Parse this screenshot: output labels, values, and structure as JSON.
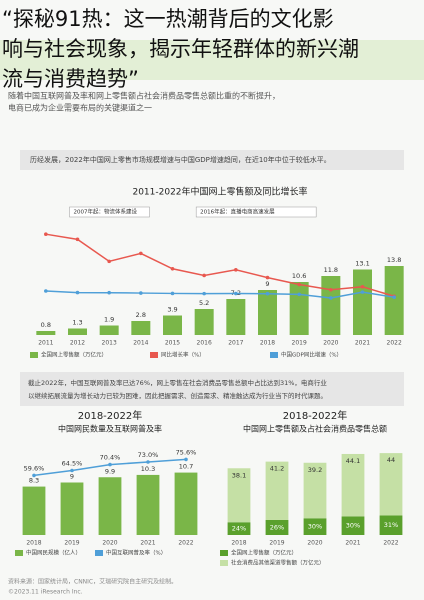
{
  "headline": [
    "“探秘91热：这一热潮背后的文化影",
    "响与社会现象，揭示年轻群体的新兴潮",
    "流与消费趋势”"
  ],
  "report": {
    "paragraph": [
      "随着中国互联网普及率和网上零售额占社会消费品零售总额比重的不断提升，",
      "电商已成为企业需要布局的关键渠道之一"
    ],
    "box1": "历经发展，2022年中国网上零售市场规模增速与中国GDP增速趋同，在近10年中位于较低水平。",
    "box2": [
      "截止2022年，中国互联网普及率已达76%，网上零售在社会消费品零售总额中占比达到31%，电商行业",
      "以继续拓展流量为增长动力已较为困难，因此把握需求、创造需求、精准触达成为行业当下的时代课题。"
    ],
    "source": "资料来源：国家统计局，CNNIC，艾瑞研究院自主研究及绘制。",
    "copyright": "©2023.11 iResearch Inc."
  },
  "chart_data": [
    {
      "type": "bar-line",
      "title": "2011-2022年中国网上零售额及同比增长率",
      "annotations": [
        "2007年起：物流体系建设",
        "2016年起：直播电商高速发展"
      ],
      "categories": [
        "2011",
        "2012",
        "2013",
        "2014",
        "2015",
        "2016",
        "2017",
        "2018",
        "2019",
        "2020",
        "2021",
        "2022"
      ],
      "series": [
        {
          "name": "全国网上零售额（万亿元）",
          "color": "#7ab648",
          "values": [
            0.8,
            1.3,
            1.9,
            2.8,
            3.9,
            5.2,
            7.2,
            9.0,
            10.6,
            11.8,
            13.1,
            13.8
          ]
        },
        {
          "name": "同比增长率（%）",
          "color": "#e8584f",
          "values": [
            70.2,
            64.7,
            41.2,
            49.7,
            33.3,
            26.2,
            32.2,
            23.9,
            16.5,
            10.9,
            14.1,
            4.0
          ]
        },
        {
          "name": "中国GDP同比增速（%）",
          "color": "#4f9fd8",
          "values": [
            9.6,
            7.9,
            7.8,
            7.4,
            7.0,
            6.8,
            6.9,
            6.7,
            6.0,
            2.2,
            8.4,
            3.0
          ]
        }
      ]
    },
    {
      "type": "bar-line",
      "title": "2018-2022年",
      "subtitle": "中国网民数量及互联网普及率",
      "categories": [
        "2018",
        "2019",
        "2020",
        "2021",
        "2022"
      ],
      "series": [
        {
          "name": "中国网民规模（亿人）",
          "color": "#7ab648",
          "values": [
            8.3,
            9.0,
            9.9,
            10.3,
            10.7
          ]
        },
        {
          "name": "中国互联网普及率（%）",
          "color": "#4f9fd8",
          "values": [
            59.6,
            64.5,
            70.4,
            73.0,
            75.6
          ],
          "value_labels": [
            "59.6%",
            "64.5%",
            "70.4%",
            "73.0%",
            "75.6%"
          ]
        }
      ]
    },
    {
      "type": "stacked-bar",
      "title": "2018-2022年",
      "subtitle": "中国网上零售额及占社会消费品零售总额",
      "categories": [
        "2018",
        "2019",
        "2020",
        "2021",
        "2022"
      ],
      "inner_labels": [
        "24%",
        "26%",
        "30%",
        "30%",
        "31%"
      ],
      "series": [
        {
          "name": "全国网上零售额（万亿元）",
          "color": "#5aa02c",
          "values": [
            9.0,
            10.6,
            11.8,
            13.1,
            13.8
          ]
        },
        {
          "name": "社会消费品其他渠道零售额（万亿元）",
          "color": "#c5e0a5",
          "values": [
            38.1,
            41.2,
            39.2,
            44.1,
            44.0
          ]
        }
      ]
    }
  ]
}
